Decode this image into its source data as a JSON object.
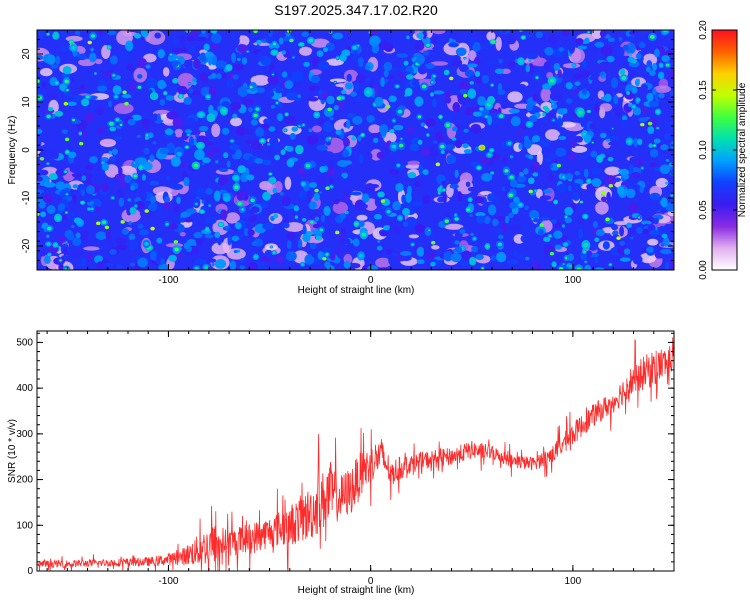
{
  "title": "S197.2025.347.17.02.R20",
  "chart_data": [
    {
      "type": "heatmap",
      "name": "spectrogram",
      "xlabel": "Height of straight line (km)",
      "ylabel": "Frequency (Hz)",
      "xlim": [
        -165,
        150
      ],
      "ylim": [
        -25,
        25
      ],
      "xticks": [
        -100,
        0,
        100
      ],
      "yticks": [
        -20,
        -10,
        0,
        10,
        20
      ],
      "colorbar": {
        "label": "Normalized spectral amplitude",
        "range": [
          0.0,
          0.2
        ],
        "ticks": [
          "0.00",
          "0.05",
          "0.10",
          "0.15",
          "0.20"
        ],
        "colormap": [
          "#ffffff",
          "#e2b0f0",
          "#8a2be2",
          "#3a1cf0",
          "#1040ff",
          "#00a0ff",
          "#00e0b0",
          "#40ff40",
          "#c0ff00",
          "#ffd000",
          "#ff6000",
          "#ff1020"
        ]
      },
      "notes_values": {
        "typical_amplitude": 0.04,
        "max_amplitude": 0.15
      }
    },
    {
      "type": "line",
      "name": "snr",
      "xlabel": "Height of straight line (km)",
      "ylabel": "SNR (10 * v/v)",
      "xlim": [
        -165,
        150
      ],
      "ylim": [
        0,
        525
      ],
      "xticks": [
        -100,
        0,
        100
      ],
      "yticks": [
        0,
        100,
        200,
        300,
        400,
        500
      ],
      "color": "#ff2a2a",
      "series": [
        {
          "name": "SNR",
          "x": [
            -165,
            -150,
            -130,
            -110,
            -95,
            -85,
            -78,
            -70,
            -60,
            -50,
            -40,
            -30,
            -20,
            -15,
            -10,
            -5,
            0,
            5,
            10,
            15,
            20,
            30,
            40,
            50,
            60,
            70,
            80,
            90,
            100,
            110,
            120,
            130,
            140,
            150
          ],
          "y": [
            15,
            16,
            18,
            20,
            28,
            45,
            60,
            62,
            70,
            85,
            100,
            125,
            170,
            160,
            175,
            210,
            235,
            255,
            215,
            225,
            235,
            245,
            250,
            265,
            260,
            240,
            235,
            255,
            300,
            340,
            370,
            420,
            445,
            465
          ],
          "noise_amplitude": [
            8,
            8,
            8,
            10,
            15,
            35,
            45,
            30,
            35,
            35,
            45,
            60,
            70,
            50,
            55,
            50,
            40,
            40,
            30,
            25,
            20,
            20,
            20,
            20,
            15,
            15,
            15,
            20,
            25,
            25,
            25,
            35,
            40,
            30
          ]
        }
      ]
    }
  ]
}
